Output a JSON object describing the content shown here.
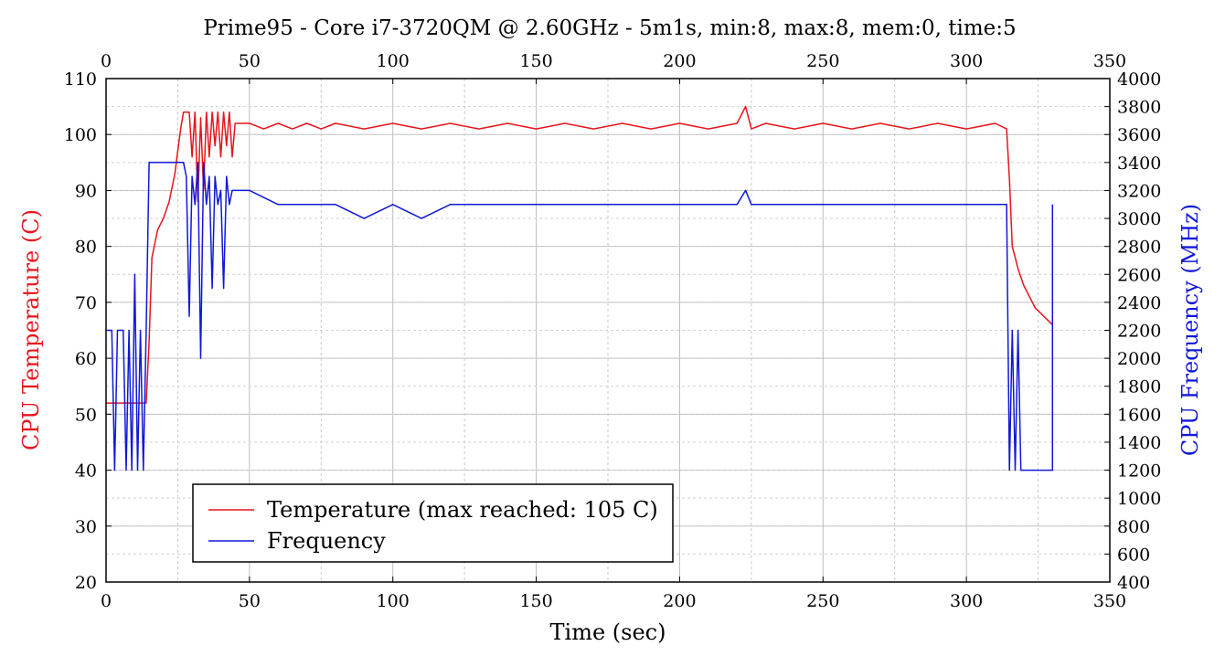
{
  "chart_data": {
    "type": "line",
    "title": "Prime95 - Core i7-3720QM @ 2.60GHz - 5m1s, min:8, max:8, mem:0, time:5",
    "xlabel": "Time (sec)",
    "ylabel_left": "CPU Temperature (C)",
    "ylabel_right": "CPU Frequency (MHz)",
    "xlim": [
      0,
      350
    ],
    "ylim_left": [
      20,
      110
    ],
    "ylim_right": [
      400,
      4000
    ],
    "x_ticks": [
      0,
      50,
      100,
      150,
      200,
      250,
      300,
      350
    ],
    "y_left_ticks": [
      20,
      30,
      40,
      50,
      60,
      70,
      80,
      90,
      100,
      110
    ],
    "y_right_ticks": [
      400,
      600,
      800,
      1000,
      1200,
      1400,
      1600,
      1800,
      2000,
      2200,
      2400,
      2600,
      2800,
      3000,
      3200,
      3400,
      3600,
      3800,
      4000
    ],
    "grid": true,
    "legend_position": "bottom-left",
    "colors": {
      "temperature": "#e8141c",
      "frequency": "#1018d8"
    },
    "series": [
      {
        "name": "Temperature (max reached: 105 C)",
        "axis": "left",
        "points": [
          [
            0,
            52
          ],
          [
            14,
            52
          ],
          [
            15,
            63
          ],
          [
            16,
            78
          ],
          [
            18,
            83
          ],
          [
            20,
            85
          ],
          [
            22,
            88
          ],
          [
            24,
            93
          ],
          [
            25,
            97
          ],
          [
            26,
            101
          ],
          [
            27,
            104
          ],
          [
            29,
            104
          ],
          [
            30,
            96
          ],
          [
            31,
            104
          ],
          [
            32,
            88
          ],
          [
            33,
            103
          ],
          [
            34,
            90
          ],
          [
            35,
            104
          ],
          [
            36,
            96
          ],
          [
            37,
            104
          ],
          [
            38,
            98
          ],
          [
            39,
            104
          ],
          [
            40,
            96
          ],
          [
            41,
            104
          ],
          [
            42,
            98
          ],
          [
            43,
            104
          ],
          [
            44,
            96
          ],
          [
            45,
            102
          ],
          [
            50,
            102
          ],
          [
            55,
            101
          ],
          [
            60,
            102
          ],
          [
            65,
            101
          ],
          [
            70,
            102
          ],
          [
            75,
            101
          ],
          [
            80,
            102
          ],
          [
            90,
            101
          ],
          [
            100,
            102
          ],
          [
            110,
            101
          ],
          [
            120,
            102
          ],
          [
            130,
            101
          ],
          [
            140,
            102
          ],
          [
            150,
            101
          ],
          [
            160,
            102
          ],
          [
            170,
            101
          ],
          [
            180,
            102
          ],
          [
            190,
            101
          ],
          [
            200,
            102
          ],
          [
            210,
            101
          ],
          [
            220,
            102
          ],
          [
            223,
            105
          ],
          [
            225,
            101
          ],
          [
            230,
            102
          ],
          [
            240,
            101
          ],
          [
            250,
            102
          ],
          [
            260,
            101
          ],
          [
            270,
            102
          ],
          [
            280,
            101
          ],
          [
            290,
            102
          ],
          [
            300,
            101
          ],
          [
            310,
            102
          ],
          [
            314,
            101
          ],
          [
            315,
            92
          ],
          [
            316,
            80
          ],
          [
            317,
            78
          ],
          [
            318,
            76
          ],
          [
            320,
            73
          ],
          [
            322,
            71
          ],
          [
            324,
            69
          ],
          [
            326,
            68
          ],
          [
            328,
            67
          ],
          [
            330,
            66
          ]
        ]
      },
      {
        "name": "Frequency",
        "axis": "right",
        "points": [
          [
            0,
            2200
          ],
          [
            2,
            2200
          ],
          [
            3,
            1200
          ],
          [
            4,
            2200
          ],
          [
            6,
            2200
          ],
          [
            7,
            1200
          ],
          [
            8,
            2200
          ],
          [
            9,
            1200
          ],
          [
            10,
            2600
          ],
          [
            11,
            1200
          ],
          [
            12,
            2200
          ],
          [
            13,
            1200
          ],
          [
            14,
            2200
          ],
          [
            15,
            3400
          ],
          [
            27,
            3400
          ],
          [
            28,
            3300
          ],
          [
            29,
            2300
          ],
          [
            30,
            3300
          ],
          [
            31,
            3100
          ],
          [
            32,
            3400
          ],
          [
            33,
            2000
          ],
          [
            34,
            3400
          ],
          [
            35,
            3100
          ],
          [
            36,
            3300
          ],
          [
            37,
            2500
          ],
          [
            38,
            3300
          ],
          [
            39,
            3100
          ],
          [
            40,
            3200
          ],
          [
            41,
            2500
          ],
          [
            42,
            3300
          ],
          [
            43,
            3100
          ],
          [
            44,
            3200
          ],
          [
            45,
            3200
          ],
          [
            50,
            3200
          ],
          [
            60,
            3100
          ],
          [
            70,
            3100
          ],
          [
            80,
            3100
          ],
          [
            90,
            3000
          ],
          [
            100,
            3100
          ],
          [
            110,
            3000
          ],
          [
            120,
            3100
          ],
          [
            130,
            3100
          ],
          [
            140,
            3100
          ],
          [
            150,
            3100
          ],
          [
            160,
            3100
          ],
          [
            165,
            3100
          ],
          [
            170,
            3100
          ],
          [
            180,
            3100
          ],
          [
            190,
            3100
          ],
          [
            200,
            3100
          ],
          [
            210,
            3100
          ],
          [
            220,
            3100
          ],
          [
            223,
            3200
          ],
          [
            225,
            3100
          ],
          [
            230,
            3100
          ],
          [
            240,
            3100
          ],
          [
            250,
            3100
          ],
          [
            260,
            3100
          ],
          [
            270,
            3100
          ],
          [
            280,
            3100
          ],
          [
            290,
            3100
          ],
          [
            300,
            3100
          ],
          [
            314,
            3100
          ],
          [
            315,
            1200
          ],
          [
            316,
            2200
          ],
          [
            317,
            1200
          ],
          [
            318,
            2200
          ],
          [
            319,
            1200
          ],
          [
            330,
            1200
          ],
          [
            330,
            3100
          ]
        ]
      }
    ]
  }
}
